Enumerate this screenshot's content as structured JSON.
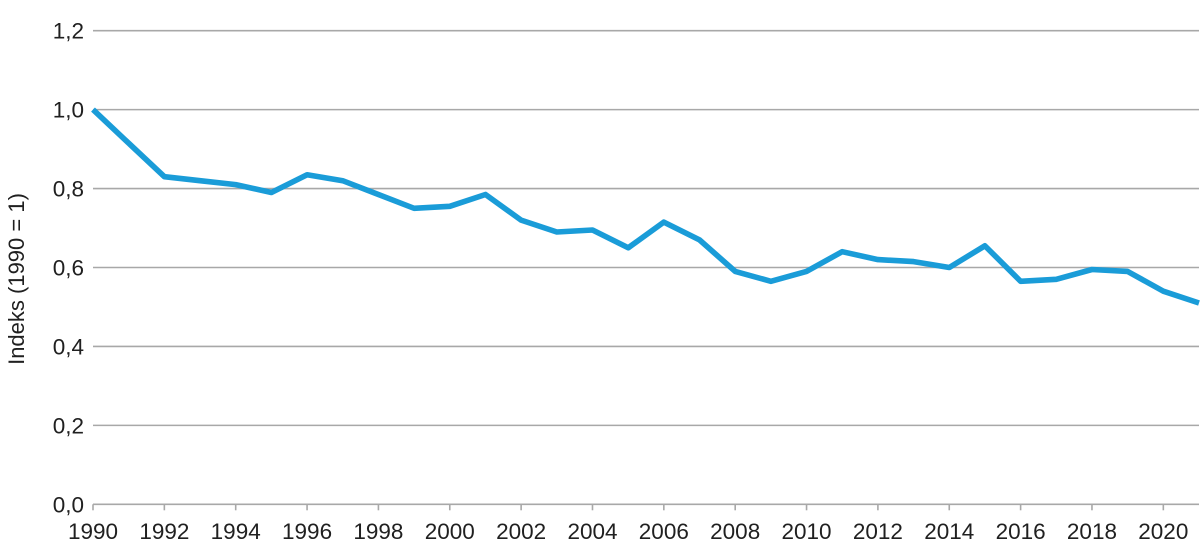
{
  "chart_data": {
    "type": "line",
    "title": "",
    "xlabel": "",
    "ylabel": "Indeks (1990 = 1)",
    "x": [
      1990,
      1991,
      1992,
      1993,
      1994,
      1995,
      1996,
      1997,
      1998,
      1999,
      2000,
      2001,
      2002,
      2003,
      2004,
      2005,
      2006,
      2007,
      2008,
      2009,
      2010,
      2011,
      2012,
      2013,
      2014,
      2015,
      2016,
      2017,
      2018,
      2019,
      2020,
      2021
    ],
    "series": [
      {
        "name": "Indeks (1990 = 1)",
        "values": [
          1.0,
          0.915,
          0.83,
          0.82,
          0.81,
          0.79,
          0.835,
          0.82,
          0.785,
          0.75,
          0.755,
          0.785,
          0.72,
          0.69,
          0.695,
          0.65,
          0.715,
          0.67,
          0.59,
          0.565,
          0.59,
          0.64,
          0.62,
          0.615,
          0.6,
          0.655,
          0.565,
          0.57,
          0.595,
          0.59,
          0.54,
          0.51
        ]
      }
    ],
    "xlim": [
      1990,
      2021
    ],
    "ylim": [
      0.0,
      1.2
    ],
    "yticks": [
      {
        "value": 1.2,
        "label": "1,2"
      },
      {
        "value": 1.0,
        "label": "1,0"
      },
      {
        "value": 0.8,
        "label": "0,8"
      },
      {
        "value": 0.6,
        "label": "0,6"
      },
      {
        "value": 0.4,
        "label": "0,4"
      },
      {
        "value": 0.2,
        "label": "0,2"
      },
      {
        "value": 0.0,
        "label": "0,0"
      }
    ],
    "xticks": [
      {
        "value": 1990,
        "label": "1990"
      },
      {
        "value": 1992,
        "label": "1992"
      },
      {
        "value": 1994,
        "label": "1994"
      },
      {
        "value": 1996,
        "label": "1996"
      },
      {
        "value": 1998,
        "label": "1998"
      },
      {
        "value": 2000,
        "label": "2000"
      },
      {
        "value": 2002,
        "label": "2002"
      },
      {
        "value": 2004,
        "label": "2004"
      },
      {
        "value": 2006,
        "label": "2006"
      },
      {
        "value": 2008,
        "label": "2008"
      },
      {
        "value": 2010,
        "label": "2010"
      },
      {
        "value": 2012,
        "label": "2012"
      },
      {
        "value": 2014,
        "label": "2014"
      },
      {
        "value": 2016,
        "label": "2016"
      },
      {
        "value": 2018,
        "label": "2018"
      },
      {
        "value": 2020,
        "label": "2020"
      }
    ],
    "grid": "horizontal",
    "legend": "none",
    "colors": {
      "line": "#1a9cd8",
      "gridline": "#a8a8a8",
      "axis": "#a8a8a8",
      "text": "#202020",
      "background": "#ffffff"
    }
  }
}
